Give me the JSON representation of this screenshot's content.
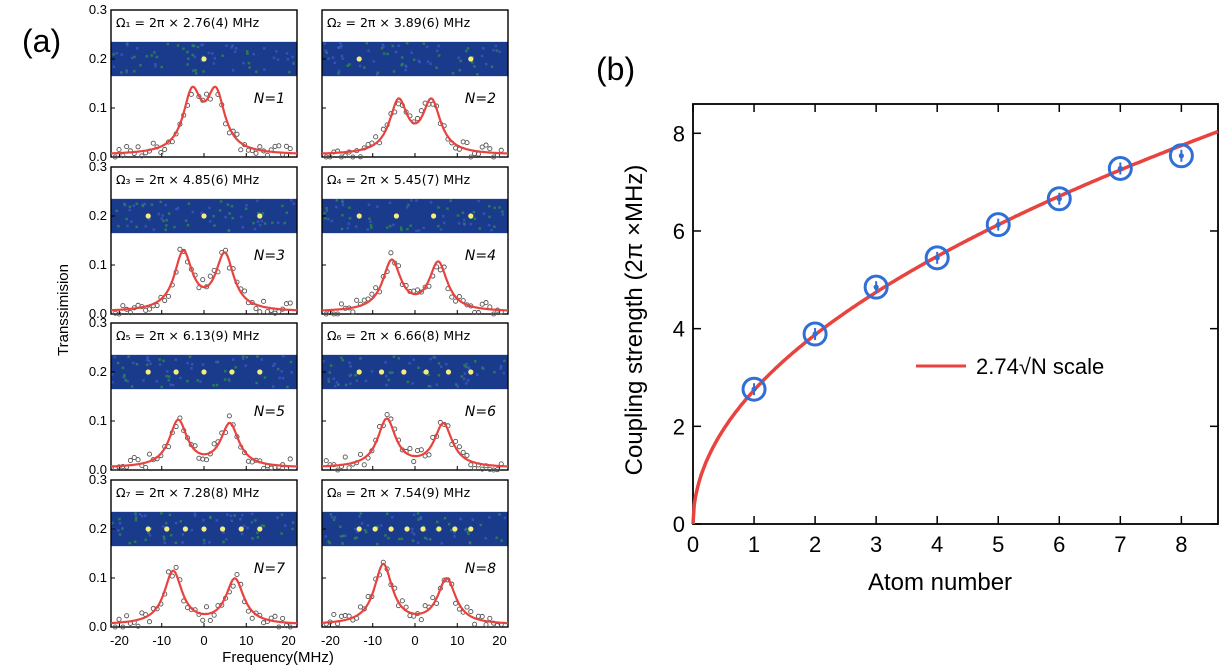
{
  "panel_labels": {
    "a": "(a)",
    "b": "(b)"
  },
  "chart_data": [
    {
      "type": "line",
      "panel": "(a)",
      "xlabel": "Frequency(MHz)",
      "ylabel": "Transsimision",
      "xlim": [
        -22,
        22
      ],
      "ylim": [
        0,
        0.3
      ],
      "xticks": [
        "-20",
        "-10",
        "0",
        "10",
        "20"
      ],
      "yticks": [
        "0.0",
        "0.1",
        "0.2",
        "0.3"
      ],
      "line_color": "#e8433f",
      "marker_color": "#555555",
      "strip_color": "#1a3a8c",
      "subplots": [
        {
          "omega_text": "Ω₁ = 2π × 2.76(4) MHz",
          "n_text": "N=1",
          "N": 1,
          "peaks": [
            -2.8,
            2.8
          ],
          "heights": [
            0.118,
            0.118
          ]
        },
        {
          "omega_text": "Ω₂ = 2π × 3.89(6) MHz",
          "n_text": "N=2",
          "N": 2,
          "peaks": [
            -3.9,
            3.9
          ],
          "heights": [
            0.105,
            0.105
          ]
        },
        {
          "omega_text": "Ω₃ = 2π × 4.85(6) MHz",
          "n_text": "N=3",
          "N": 3,
          "peaks": [
            -4.9,
            4.9
          ],
          "heights": [
            0.118,
            0.114
          ]
        },
        {
          "omega_text": "Ω₄ = 2π × 5.45(7) MHz",
          "n_text": "N=4",
          "N": 4,
          "peaks": [
            -5.5,
            5.5
          ],
          "heights": [
            0.102,
            0.098
          ]
        },
        {
          "omega_text": "Ω₅ = 2π × 6.13(9) MHz",
          "n_text": "N=5",
          "N": 5,
          "peaks": [
            -6.1,
            6.1
          ],
          "heights": [
            0.095,
            0.088
          ]
        },
        {
          "omega_text": "Ω₆ = 2π × 6.66(8) MHz",
          "n_text": "N=6",
          "N": 6,
          "peaks": [
            -6.7,
            6.7
          ],
          "heights": [
            0.098,
            0.088
          ]
        },
        {
          "omega_text": "Ω₇ = 2π × 7.28(8) MHz",
          "n_text": "N=7",
          "N": 7,
          "peaks": [
            -7.3,
            7.3
          ],
          "heights": [
            0.108,
            0.092
          ]
        },
        {
          "omega_text": "Ω₈ = 2π × 7.54(9) MHz",
          "n_text": "N=8",
          "N": 8,
          "peaks": [
            -7.5,
            7.5
          ],
          "heights": [
            0.122,
            0.092
          ]
        }
      ]
    },
    {
      "type": "scatter",
      "panel": "(b)",
      "xlabel": "Atom number",
      "ylabel": "Coupling strength (2π ×MHz)",
      "xlim": [
        0,
        8.6
      ],
      "ylim": [
        0,
        8.6
      ],
      "xticks": [
        "0",
        "1",
        "2",
        "3",
        "4",
        "5",
        "6",
        "7",
        "8"
      ],
      "yticks": [
        "0",
        "2",
        "4",
        "6",
        "8"
      ],
      "x": [
        1,
        2,
        3,
        4,
        5,
        6,
        7,
        8
      ],
      "y": [
        2.76,
        3.89,
        4.85,
        5.45,
        6.13,
        6.66,
        7.28,
        7.54
      ],
      "fit": {
        "coefficient": 2.74,
        "legend": "2.74√N scale",
        "color": "#e8433f"
      },
      "marker_color": "#2f6fd6",
      "legend_placement": "center-right"
    }
  ]
}
